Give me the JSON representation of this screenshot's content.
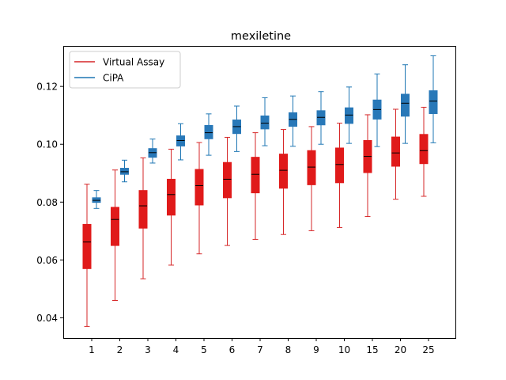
{
  "chart_data": {
    "type": "boxplot",
    "title": "mexiletine",
    "xlabel": "",
    "ylabel": "",
    "categories": [
      "1",
      "2",
      "3",
      "4",
      "5",
      "6",
      "7",
      "8",
      "9",
      "10",
      "15",
      "20",
      "25"
    ],
    "ylim": [
      0.033,
      0.134
    ],
    "yticks": [
      "0.04",
      "0.06",
      "0.08",
      "0.10",
      "0.12"
    ],
    "legend_position": "top-left",
    "series": [
      {
        "name": "Virtual Assay",
        "color": "#d62728",
        "box_color": "#e01a1a",
        "whisker_low": [
          0.037,
          0.046,
          0.0535,
          0.0582,
          0.0621,
          0.065,
          0.0671,
          0.0688,
          0.0701,
          0.0712,
          0.075,
          0.081,
          0.082
        ],
        "q1": [
          0.057,
          0.065,
          0.071,
          0.0755,
          0.079,
          0.0815,
          0.0832,
          0.0848,
          0.086,
          0.0867,
          0.0902,
          0.0924,
          0.0933
        ],
        "median": [
          0.0662,
          0.074,
          0.0787,
          0.0826,
          0.0857,
          0.0879,
          0.0896,
          0.091,
          0.0921,
          0.093,
          0.0958,
          0.097,
          0.0978
        ],
        "q3": [
          0.0723,
          0.0782,
          0.084,
          0.0879,
          0.0913,
          0.0937,
          0.0955,
          0.0966,
          0.0978,
          0.0987,
          0.1013,
          0.1025,
          0.1034
        ],
        "whisker_high": [
          0.0862,
          0.0911,
          0.0953,
          0.0983,
          0.1006,
          0.1024,
          0.104,
          0.1051,
          0.1061,
          0.1073,
          0.1102,
          0.1121,
          0.1128
        ]
      },
      {
        "name": "CiPA",
        "color": "#1f77b4",
        "box_color": "#2878b8",
        "whisker_low": [
          0.0778,
          0.087,
          0.0935,
          0.0946,
          0.0962,
          0.0975,
          0.0995,
          0.0993,
          0.1,
          0.1003,
          0.0992,
          0.1003,
          0.1005
        ],
        "q1": [
          0.0799,
          0.0896,
          0.0955,
          0.0994,
          0.1019,
          0.1037,
          0.1053,
          0.1062,
          0.1067,
          0.1072,
          0.1087,
          0.1097,
          0.1106
        ],
        "median": [
          0.0806,
          0.0905,
          0.0971,
          0.1013,
          0.104,
          0.1061,
          0.1073,
          0.1086,
          0.1093,
          0.1101,
          0.112,
          0.1142,
          0.1149
        ],
        "q3": [
          0.0815,
          0.0917,
          0.0985,
          0.1029,
          0.1065,
          0.1084,
          0.1098,
          0.1109,
          0.1116,
          0.1126,
          0.1153,
          0.1173,
          0.1185
        ],
        "whisker_high": [
          0.084,
          0.0945,
          0.1018,
          0.1071,
          0.1105,
          0.1132,
          0.1161,
          0.1167,
          0.1182,
          0.1198,
          0.1243,
          0.1275,
          0.1306
        ]
      }
    ]
  }
}
